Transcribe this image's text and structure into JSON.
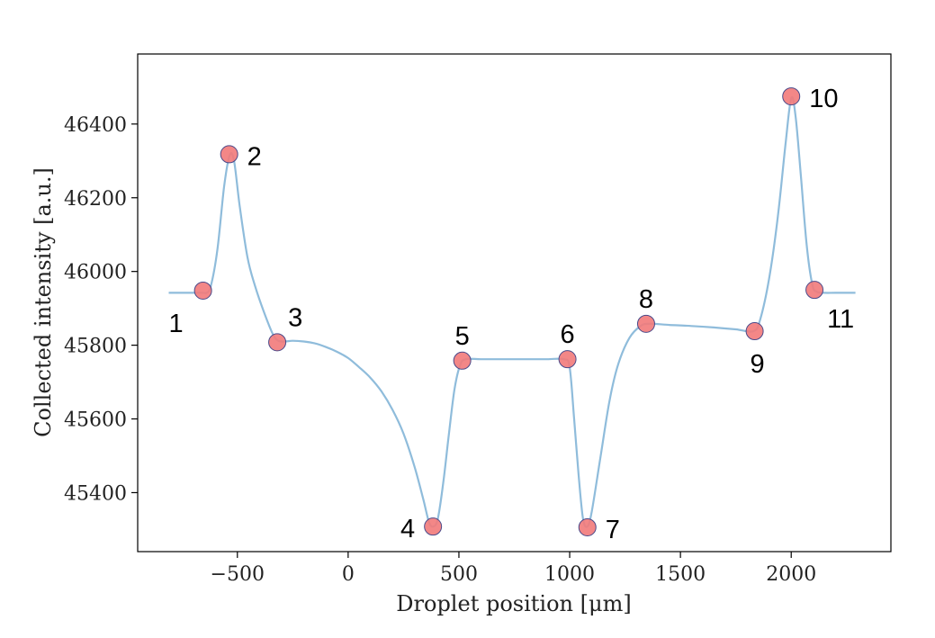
{
  "chart_data": {
    "type": "line",
    "xlabel": "Droplet position [μm]",
    "ylabel": "Collected intensity [a.u.]",
    "xlim": [
      -950,
      2450
    ],
    "ylim": [
      45240,
      46590
    ],
    "xticks": [
      {
        "value": -500,
        "label": "−500"
      },
      {
        "value": 0,
        "label": "0"
      },
      {
        "value": 500,
        "label": "500"
      },
      {
        "value": 1000,
        "label": "1000"
      },
      {
        "value": 1500,
        "label": "1500"
      },
      {
        "value": 2000,
        "label": "2000"
      }
    ],
    "yticks": [
      {
        "value": 45400,
        "label": "45400"
      },
      {
        "value": 45600,
        "label": "45600"
      },
      {
        "value": 45800,
        "label": "45800"
      },
      {
        "value": 46000,
        "label": "46000"
      },
      {
        "value": 46200,
        "label": "46200"
      },
      {
        "value": 46400,
        "label": "46400"
      }
    ],
    "grid": false,
    "line_color": "#8fbcdb",
    "marker_color": "#f27a7a",
    "marker_edge_color": "#4a4a8a",
    "curve": [
      [
        -810,
        45942
      ],
      [
        -660,
        45942
      ],
      [
        -640,
        45942
      ],
      [
        -620,
        45960
      ],
      [
        -590,
        46060
      ],
      [
        -560,
        46230
      ],
      [
        -535,
        46315
      ],
      [
        -515,
        46300
      ],
      [
        -490,
        46180
      ],
      [
        -455,
        46040
      ],
      [
        -420,
        45960
      ],
      [
        -380,
        45890
      ],
      [
        -340,
        45830
      ],
      [
        -315,
        45812
      ],
      [
        -285,
        45810
      ],
      [
        -250,
        45812
      ],
      [
        -200,
        45810
      ],
      [
        -150,
        45805
      ],
      [
        -100,
        45795
      ],
      [
        -50,
        45782
      ],
      [
        0,
        45765
      ],
      [
        50,
        45740
      ],
      [
        100,
        45712
      ],
      [
        150,
        45675
      ],
      [
        200,
        45625
      ],
      [
        250,
        45560
      ],
      [
        300,
        45470
      ],
      [
        340,
        45380
      ],
      [
        365,
        45320
      ],
      [
        385,
        45308
      ],
      [
        405,
        45330
      ],
      [
        430,
        45430
      ],
      [
        455,
        45560
      ],
      [
        480,
        45680
      ],
      [
        505,
        45745
      ],
      [
        530,
        45762
      ],
      [
        600,
        45762
      ],
      [
        700,
        45762
      ],
      [
        800,
        45762
      ],
      [
        900,
        45762
      ],
      [
        975,
        45762
      ],
      [
        1000,
        45740
      ],
      [
        1020,
        45600
      ],
      [
        1040,
        45450
      ],
      [
        1060,
        45330
      ],
      [
        1080,
        45308
      ],
      [
        1100,
        45350
      ],
      [
        1140,
        45500
      ],
      [
        1180,
        45650
      ],
      [
        1220,
        45750
      ],
      [
        1270,
        45820
      ],
      [
        1320,
        45852
      ],
      [
        1360,
        45858
      ],
      [
        1450,
        45855
      ],
      [
        1550,
        45852
      ],
      [
        1650,
        45848
      ],
      [
        1750,
        45843
      ],
      [
        1830,
        45838
      ],
      [
        1860,
        45870
      ],
      [
        1900,
        45980
      ],
      [
        1940,
        46150
      ],
      [
        1975,
        46350
      ],
      [
        2000,
        46470
      ],
      [
        2020,
        46420
      ],
      [
        2045,
        46250
      ],
      [
        2070,
        46070
      ],
      [
        2095,
        45965
      ],
      [
        2115,
        45945
      ],
      [
        2150,
        45942
      ],
      [
        2200,
        45942
      ],
      [
        2290,
        45942
      ]
    ],
    "points": [
      {
        "label": "1",
        "x": -655,
        "y": 45948,
        "label_pos": "below-left"
      },
      {
        "label": "2",
        "x": -537,
        "y": 46318,
        "label_pos": "right"
      },
      {
        "label": "3",
        "x": -320,
        "y": 45808,
        "label_pos": "above-right"
      },
      {
        "label": "4",
        "x": 383,
        "y": 45308,
        "label_pos": "left"
      },
      {
        "label": "5",
        "x": 515,
        "y": 45758,
        "label_pos": "above"
      },
      {
        "label": "6",
        "x": 990,
        "y": 45762,
        "label_pos": "above"
      },
      {
        "label": "7",
        "x": 1080,
        "y": 45306,
        "label_pos": "right"
      },
      {
        "label": "8",
        "x": 1345,
        "y": 45858,
        "label_pos": "above"
      },
      {
        "label": "9",
        "x": 1835,
        "y": 45838,
        "label_pos": "below"
      },
      {
        "label": "10",
        "x": 2000,
        "y": 46475,
        "label_pos": "right"
      },
      {
        "label": "11",
        "x": 2105,
        "y": 45950,
        "label_pos": "below-right"
      }
    ]
  }
}
